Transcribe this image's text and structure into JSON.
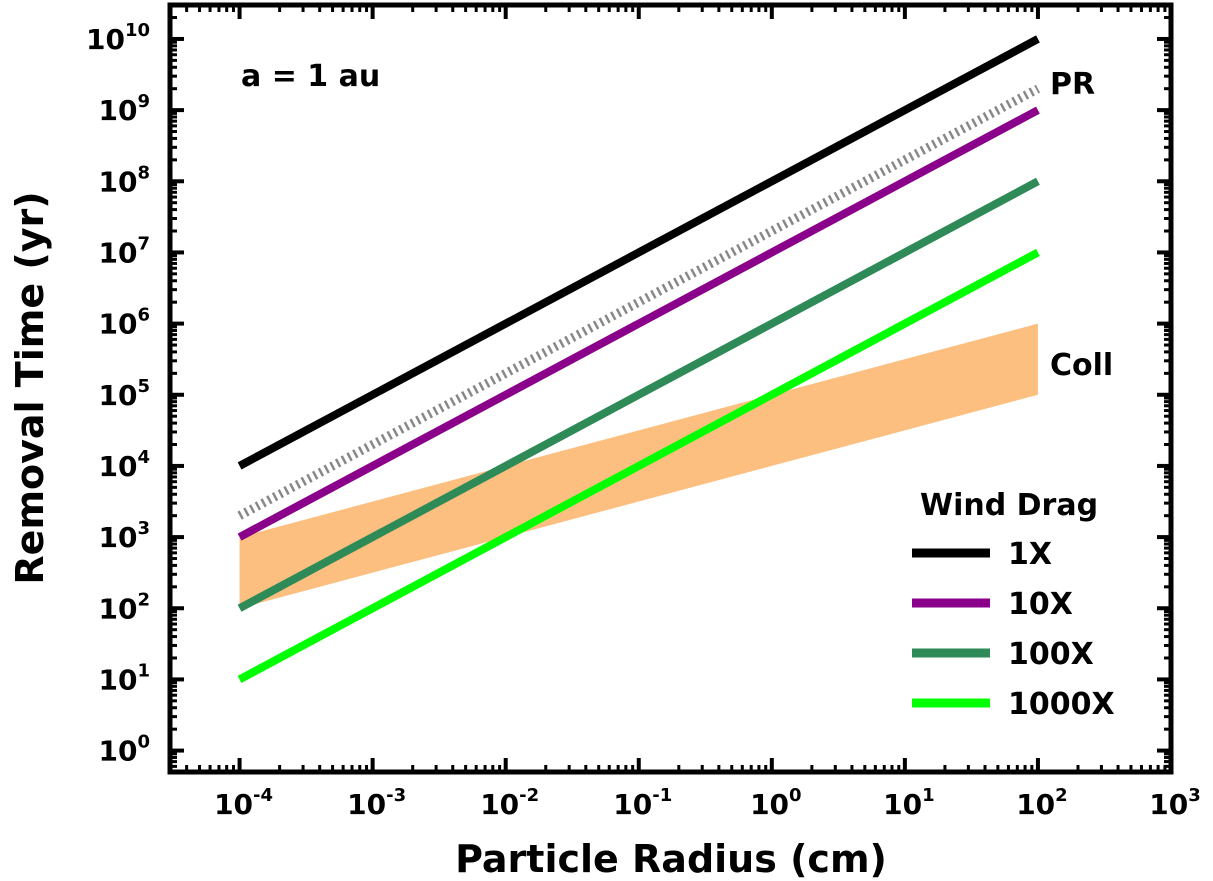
{
  "chart_data": {
    "type": "line",
    "title": "",
    "xlabel": "Particle Radius (cm)",
    "ylabel": "Removal Time (yr)",
    "xscale": "log",
    "yscale": "log",
    "xlim": [
      3e-05,
      1000
    ],
    "ylim": [
      0.5,
      30000000000
    ],
    "x_ticks": [
      {
        "base": "10",
        "exp": "-4",
        "value": 0.0001
      },
      {
        "base": "10",
        "exp": "-3",
        "value": 0.001
      },
      {
        "base": "10",
        "exp": "-2",
        "value": 0.01
      },
      {
        "base": "10",
        "exp": "-1",
        "value": 0.1
      },
      {
        "base": "10",
        "exp": "0",
        "value": 1
      },
      {
        "base": "10",
        "exp": "1",
        "value": 10
      },
      {
        "base": "10",
        "exp": "2",
        "value": 100
      },
      {
        "base": "10",
        "exp": "3",
        "value": 1000
      }
    ],
    "y_ticks": [
      {
        "base": "10",
        "exp": "0",
        "value": 1
      },
      {
        "base": "10",
        "exp": "1",
        "value": 10
      },
      {
        "base": "10",
        "exp": "2",
        "value": 100
      },
      {
        "base": "10",
        "exp": "3",
        "value": 1000
      },
      {
        "base": "10",
        "exp": "4",
        "value": 10000
      },
      {
        "base": "10",
        "exp": "5",
        "value": 100000
      },
      {
        "base": "10",
        "exp": "6",
        "value": 1000000
      },
      {
        "base": "10",
        "exp": "7",
        "value": 10000000
      },
      {
        "base": "10",
        "exp": "8",
        "value": 100000000
      },
      {
        "base": "10",
        "exp": "9",
        "value": 1000000000
      },
      {
        "base": "10",
        "exp": "10",
        "value": 10000000000
      }
    ],
    "series": [
      {
        "name": "1000X",
        "color": "#00ff00",
        "x": [
          0.0001,
          100
        ],
        "y": [
          10,
          10000000
        ]
      },
      {
        "name": "100X",
        "color": "#2e8b57",
        "x": [
          0.0001,
          100
        ],
        "y": [
          100,
          100000000
        ]
      },
      {
        "name": "10X",
        "color": "#8b008b",
        "x": [
          0.0001,
          100
        ],
        "y": [
          1000,
          1000000000
        ]
      },
      {
        "name": "1X",
        "color": "#000000",
        "x": [
          0.0001,
          100
        ],
        "y": [
          10000,
          10000000000
        ]
      }
    ],
    "pr_line": {
      "label": "PR",
      "color": "#888888",
      "style": "dotted",
      "x": [
        0.0001,
        100
      ],
      "y": [
        2000,
        2000000000
      ]
    },
    "coll_band": {
      "label": "Coll",
      "color": "#fdbf80",
      "x": [
        0.0001,
        100
      ],
      "upper": [
        1000,
        1000000
      ],
      "lower": [
        100,
        100000
      ]
    },
    "annotation": "a = 1 au",
    "legend": {
      "title": "Wind Drag",
      "placement": "lower-right"
    },
    "grid": false
  }
}
